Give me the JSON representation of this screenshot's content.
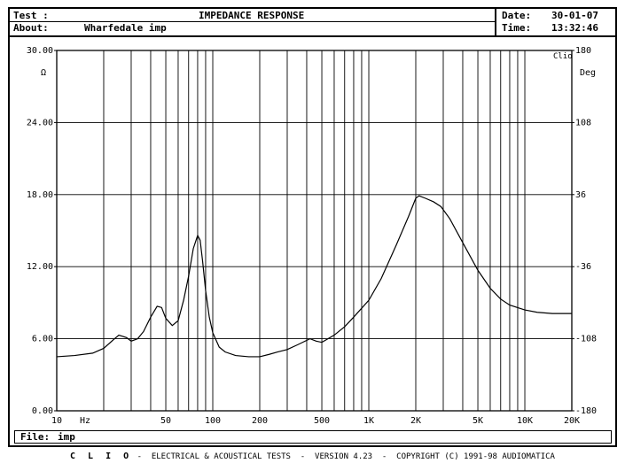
{
  "header": {
    "test_label": "Test :",
    "title": "IMPEDANCE RESPONSE",
    "about_label": "About:",
    "about_value": "Wharfedale imp",
    "date_label": "Date:",
    "date_value": "30-01-07",
    "time_label": "Time:",
    "time_value": "13:32:46"
  },
  "file": {
    "label": "File:",
    "value": "imp"
  },
  "footer": {
    "brand": "C L I O",
    "text": " -  ELECTRICAL & ACOUSTICAL TESTS  -  VERSION 4.23  -  COPYRIGHT (C) 1991-98 AUDIOMATICA"
  },
  "chart_data": {
    "type": "line",
    "title": "IMPEDANCE RESPONSE",
    "xlabel": "Hz",
    "ylabel": "Ω",
    "y2label": "Deg",
    "corner_label": "Clio",
    "xscale": "log",
    "xlim": [
      10,
      20000
    ],
    "ylim": [
      0,
      30
    ],
    "y2lim": [
      -180,
      180
    ],
    "grid": true,
    "x_ticks": [
      {
        "value": 10,
        "label": "10"
      },
      {
        "value": 50,
        "label": "50"
      },
      {
        "value": 100,
        "label": "100"
      },
      {
        "value": 200,
        "label": "200"
      },
      {
        "value": 500,
        "label": "500"
      },
      {
        "value": 1000,
        "label": "1K"
      },
      {
        "value": 2000,
        "label": "2K"
      },
      {
        "value": 5000,
        "label": "5K"
      },
      {
        "value": 10000,
        "label": "10K"
      },
      {
        "value": 20000,
        "label": "20K"
      }
    ],
    "y_ticks": [
      {
        "value": 0,
        "label": "0.00"
      },
      {
        "value": 6,
        "label": "6.00"
      },
      {
        "value": 12,
        "label": "12.00"
      },
      {
        "value": 18,
        "label": "18.00"
      },
      {
        "value": 24,
        "label": "24.00"
      },
      {
        "value": 30,
        "label": "30.00"
      }
    ],
    "y2_ticks": [
      {
        "value": -180,
        "label": "-180"
      },
      {
        "value": -108,
        "label": "-108"
      },
      {
        "value": -36,
        "label": "-36"
      },
      {
        "value": 36,
        "label": "36"
      },
      {
        "value": 108,
        "label": "108"
      },
      {
        "value": 180,
        "label": "180"
      }
    ],
    "series": [
      {
        "color": "#000000",
        "x": [
          10,
          13,
          17,
          20,
          23,
          25,
          28,
          30,
          33,
          36,
          40,
          44,
          47,
          50,
          55,
          60,
          65,
          70,
          75,
          80,
          83,
          86,
          90,
          95,
          100,
          110,
          120,
          140,
          170,
          200,
          230,
          260,
          300,
          350,
          420,
          460,
          500,
          600,
          700,
          800,
          1000,
          1200,
          1500,
          1800,
          2000,
          2100,
          2300,
          2600,
          2900,
          3300,
          4000,
          5000,
          6000,
          7000,
          8000,
          10000,
          12000,
          15000,
          20000
        ],
        "y": [
          4.5,
          4.6,
          4.8,
          5.2,
          5.9,
          6.3,
          6.1,
          5.8,
          6.0,
          6.6,
          7.8,
          8.7,
          8.6,
          7.7,
          7.1,
          7.5,
          9.2,
          11.2,
          13.5,
          14.6,
          14.2,
          12.5,
          10.0,
          7.8,
          6.5,
          5.3,
          4.9,
          4.6,
          4.5,
          4.5,
          4.7,
          4.9,
          5.1,
          5.5,
          6.0,
          5.8,
          5.7,
          6.3,
          7.0,
          7.8,
          9.2,
          11.0,
          13.8,
          16.2,
          17.7,
          17.9,
          17.7,
          17.4,
          17.0,
          16.0,
          14.0,
          11.7,
          10.2,
          9.3,
          8.8,
          8.4,
          8.2,
          8.1,
          8.1
        ]
      }
    ]
  }
}
